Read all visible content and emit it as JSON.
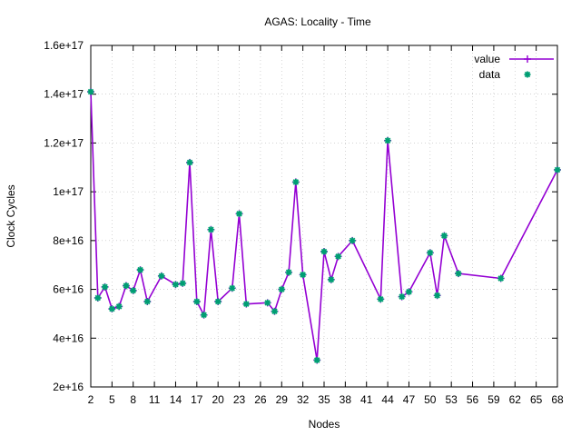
{
  "chart_data": {
    "type": "line",
    "title": "AGAS: Locality - Time",
    "xlabel": "Nodes",
    "ylabel": "Clock Cycles",
    "xlim": [
      2,
      68
    ],
    "ylim": [
      2e+16,
      1.6e+17
    ],
    "x_ticks": [
      2,
      5,
      8,
      11,
      14,
      17,
      20,
      23,
      26,
      29,
      32,
      35,
      38,
      41,
      44,
      47,
      50,
      53,
      56,
      59,
      62,
      65,
      68
    ],
    "x_tick_labels": [
      "2",
      "5",
      "8",
      "11",
      "14",
      "17",
      "20",
      "23",
      "26",
      "29",
      "32",
      "35",
      "38",
      "41",
      "44",
      "47",
      "50",
      "53",
      "56",
      "59",
      "62",
      "65",
      "68"
    ],
    "y_ticks": [
      2e+16,
      4e+16,
      6e+16,
      8e+16,
      1e+17,
      1.2e+17,
      1.4e+17,
      1.6e+17
    ],
    "y_tick_labels": [
      "2e+16",
      "4e+16",
      "6e+16",
      "8e+16",
      "1e+17",
      "1.2e+17",
      "1.4e+17",
      "1.6e+17"
    ],
    "grid": true,
    "legend_position": "top-right",
    "series": [
      {
        "name": "value",
        "style": "line-with-plus",
        "color": "#9400d3",
        "x": [
          2,
          3,
          4,
          5,
          6,
          7,
          8,
          9,
          10,
          12,
          14,
          15,
          16,
          17,
          18,
          19,
          20,
          22,
          23,
          24,
          27,
          28,
          29,
          30,
          31,
          32,
          34,
          35,
          36,
          37,
          39,
          43,
          44,
          46,
          47,
          50,
          51,
          52,
          54,
          60,
          68
        ],
        "y": [
          1.41e+17,
          5.65e+16,
          6.1e+16,
          5.2e+16,
          5.3e+16,
          6.15e+16,
          5.95e+16,
          6.8e+16,
          5.5e+16,
          6.55e+16,
          6.2e+16,
          6.25e+16,
          1.12e+17,
          5.5e+16,
          4.95e+16,
          8.45e+16,
          5.5e+16,
          6.05e+16,
          9.1e+16,
          5.4e+16,
          5.45e+16,
          5.1e+16,
          6e+16,
          6.7e+16,
          1.04e+17,
          6.6e+16,
          3.1e+16,
          7.55e+16,
          6.4e+16,
          7.35e+16,
          8e+16,
          5.6e+16,
          1.21e+17,
          5.7e+16,
          5.9e+16,
          7.5e+16,
          5.75e+16,
          8.2e+16,
          6.65e+16,
          6.45e+16,
          1.09e+17
        ]
      },
      {
        "name": "data",
        "style": "points",
        "color": "#009e73",
        "x": [
          2,
          3,
          4,
          5,
          6,
          7,
          8,
          9,
          10,
          12,
          14,
          15,
          16,
          17,
          18,
          19,
          20,
          22,
          23,
          24,
          27,
          28,
          29,
          30,
          31,
          32,
          34,
          35,
          36,
          37,
          39,
          43,
          44,
          46,
          47,
          50,
          51,
          52,
          54,
          60,
          68
        ],
        "y": [
          1.41e+17,
          5.65e+16,
          6.1e+16,
          5.2e+16,
          5.3e+16,
          6.15e+16,
          5.95e+16,
          6.8e+16,
          5.5e+16,
          6.55e+16,
          6.2e+16,
          6.25e+16,
          1.12e+17,
          5.5e+16,
          4.95e+16,
          8.45e+16,
          5.5e+16,
          6.05e+16,
          9.1e+16,
          5.4e+16,
          5.45e+16,
          5.1e+16,
          6e+16,
          6.7e+16,
          1.04e+17,
          6.6e+16,
          3.1e+16,
          7.55e+16,
          6.4e+16,
          7.35e+16,
          8e+16,
          5.6e+16,
          1.21e+17,
          5.7e+16,
          5.9e+16,
          7.5e+16,
          5.75e+16,
          8.2e+16,
          6.65e+16,
          6.45e+16,
          1.09e+17
        ]
      }
    ]
  }
}
